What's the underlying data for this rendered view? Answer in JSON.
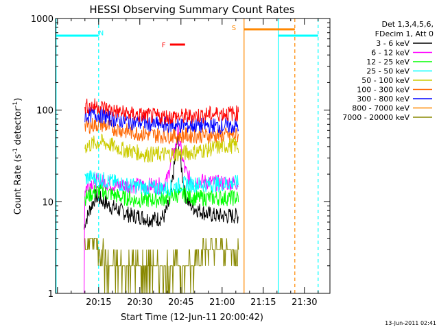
{
  "chart_data": {
    "type": "line",
    "title": "HESSI Observing Summary Count Rates",
    "xlabel": "Start Time (12-Jun-11 20:00:42)",
    "ylabel_prefix": "Count Rate (s",
    "ylabel_sup1": "-1",
    "ylabel_mid": " detector",
    "ylabel_sup2": "-1",
    "ylabel_suffix": ")",
    "yscale": "log",
    "ylim": [
      1,
      1000
    ],
    "xlim_minutes": [
      -0.7,
      99.3
    ],
    "x_ticks": [
      {
        "label": "20:15",
        "minutes": 15
      },
      {
        "label": "20:30",
        "minutes": 30
      },
      {
        "label": "20:45",
        "minutes": 45
      },
      {
        "label": "21:00",
        "minutes": 60
      },
      {
        "label": "21:15",
        "minutes": 75
      },
      {
        "label": "21:30",
        "minutes": 90
      }
    ],
    "y_ticks": [
      {
        "label": "1",
        "value": 1
      },
      {
        "label": "10",
        "value": 10
      },
      {
        "label": "100",
        "value": 100
      },
      {
        "label": "1000",
        "value": 1000
      }
    ],
    "legend": {
      "header": [
        "Det 1,3,4,5,6,",
        "FDecim 1, Att 0"
      ],
      "placement": "right"
    },
    "series": [
      {
        "name": "3 - 6 keV",
        "color": "#000000",
        "points": [
          [
            9.7,
            5
          ],
          [
            10,
            6
          ],
          [
            11,
            7
          ],
          [
            12,
            8.5
          ],
          [
            13,
            10
          ],
          [
            14,
            11.5
          ],
          [
            15,
            11
          ],
          [
            17,
            10
          ],
          [
            19,
            9
          ],
          [
            21,
            8.5
          ],
          [
            23,
            8
          ],
          [
            25,
            7.5
          ],
          [
            27,
            7
          ],
          [
            29,
            7
          ],
          [
            31,
            6.8
          ],
          [
            33,
            6.5
          ],
          [
            35,
            6.5
          ],
          [
            37,
            6.5
          ],
          [
            39,
            7
          ],
          [
            41,
            10
          ],
          [
            42,
            18
          ],
          [
            43,
            30
          ],
          [
            43.8,
            50
          ],
          [
            44.5,
            35
          ],
          [
            45.5,
            20
          ],
          [
            46.5,
            12
          ],
          [
            48,
            9.5
          ],
          [
            50,
            8.5
          ],
          [
            52,
            8
          ],
          [
            54,
            7.5
          ],
          [
            56,
            7.2
          ],
          [
            58,
            7
          ],
          [
            60,
            7
          ],
          [
            62,
            7
          ],
          [
            66,
            7
          ]
        ]
      },
      {
        "name": "6 - 12 keV",
        "color": "#ff00ff",
        "points": [
          [
            9.7,
            1
          ],
          [
            9.8,
            5
          ],
          [
            10,
            14
          ],
          [
            12,
            16
          ],
          [
            14,
            17
          ],
          [
            16,
            16.5
          ],
          [
            18,
            16
          ],
          [
            20,
            15.5
          ],
          [
            22,
            15
          ],
          [
            24,
            15
          ],
          [
            26,
            15
          ],
          [
            28,
            15
          ],
          [
            30,
            15
          ],
          [
            32,
            15
          ],
          [
            34,
            15
          ],
          [
            36,
            15
          ],
          [
            38,
            15
          ],
          [
            40,
            17
          ],
          [
            41,
            25
          ],
          [
            42,
            32
          ],
          [
            43,
            38
          ],
          [
            43.8,
            60
          ],
          [
            44.5,
            45
          ],
          [
            45.5,
            30
          ],
          [
            46.5,
            22
          ],
          [
            48,
            18
          ],
          [
            50,
            17
          ],
          [
            54,
            16.5
          ],
          [
            58,
            16
          ],
          [
            62,
            16
          ],
          [
            66,
            16
          ]
        ]
      },
      {
        "name": "12 - 25 keV",
        "color": "#00ff00",
        "points": [
          [
            10,
            11
          ],
          [
            12,
            12
          ],
          [
            14,
            13
          ],
          [
            16,
            13
          ],
          [
            18,
            12.5
          ],
          [
            20,
            12
          ],
          [
            22,
            11.5
          ],
          [
            24,
            11
          ],
          [
            26,
            11
          ],
          [
            28,
            10.5
          ],
          [
            30,
            10.5
          ],
          [
            32,
            10.5
          ],
          [
            34,
            10.5
          ],
          [
            36,
            10.5
          ],
          [
            38,
            10.8
          ],
          [
            40,
            11
          ],
          [
            42,
            11.5
          ],
          [
            44,
            12
          ],
          [
            46,
            12
          ],
          [
            48,
            11.5
          ],
          [
            50,
            11
          ],
          [
            52,
            11
          ],
          [
            54,
            11
          ],
          [
            56,
            11
          ],
          [
            58,
            11
          ],
          [
            60,
            11
          ],
          [
            62,
            11
          ],
          [
            66,
            11
          ]
        ]
      },
      {
        "name": "25 - 50 keV",
        "color": "#00ffff",
        "points": [
          [
            10,
            18
          ],
          [
            12,
            18.5
          ],
          [
            14,
            18
          ],
          [
            16,
            17.5
          ],
          [
            18,
            17
          ],
          [
            20,
            16.5
          ],
          [
            22,
            16
          ],
          [
            24,
            15.5
          ],
          [
            26,
            15
          ],
          [
            28,
            14.8
          ],
          [
            30,
            14.5
          ],
          [
            32,
            14.3
          ],
          [
            34,
            14
          ],
          [
            36,
            14
          ],
          [
            38,
            14
          ],
          [
            40,
            14
          ],
          [
            42,
            14.5
          ],
          [
            44,
            15
          ],
          [
            46,
            15.5
          ],
          [
            48,
            15.5
          ],
          [
            50,
            15.5
          ],
          [
            54,
            15.5
          ],
          [
            58,
            15.5
          ],
          [
            62,
            16
          ],
          [
            66,
            16
          ]
        ]
      },
      {
        "name": "50 - 100 keV",
        "color": "#cccc00",
        "points": [
          [
            10,
            40
          ],
          [
            12,
            42
          ],
          [
            14,
            44
          ],
          [
            16,
            45
          ],
          [
            18,
            43
          ],
          [
            20,
            41
          ],
          [
            22,
            39
          ],
          [
            24,
            37
          ],
          [
            26,
            36
          ],
          [
            28,
            35
          ],
          [
            30,
            34
          ],
          [
            32,
            33
          ],
          [
            34,
            33
          ],
          [
            36,
            33
          ],
          [
            38,
            33
          ],
          [
            40,
            33
          ],
          [
            42,
            33
          ],
          [
            44,
            33.5
          ],
          [
            46,
            34
          ],
          [
            48,
            34.5
          ],
          [
            50,
            35
          ],
          [
            52,
            36
          ],
          [
            54,
            37
          ],
          [
            56,
            38
          ],
          [
            58,
            39
          ],
          [
            60,
            40
          ],
          [
            62,
            41
          ],
          [
            66,
            41
          ]
        ]
      },
      {
        "name": "100 - 300 keV",
        "color": "#ff6600",
        "points": [
          [
            10,
            66
          ],
          [
            12,
            68
          ],
          [
            14,
            70
          ],
          [
            16,
            70
          ],
          [
            18,
            67
          ],
          [
            20,
            64
          ],
          [
            22,
            62
          ],
          [
            24,
            60
          ],
          [
            26,
            58
          ],
          [
            28,
            57
          ],
          [
            30,
            56
          ],
          [
            32,
            55
          ],
          [
            34,
            54
          ],
          [
            36,
            53
          ],
          [
            38,
            53
          ],
          [
            40,
            53
          ],
          [
            42,
            53
          ],
          [
            44,
            53
          ],
          [
            46,
            53
          ],
          [
            48,
            53
          ],
          [
            50,
            53
          ],
          [
            52,
            53
          ],
          [
            54,
            53
          ],
          [
            56,
            53
          ],
          [
            58,
            53
          ],
          [
            60,
            53
          ],
          [
            62,
            53
          ],
          [
            66,
            53
          ]
        ]
      },
      {
        "name": "300 - 800 keV",
        "color": "#0000ff",
        "points": [
          [
            10,
            87
          ],
          [
            12,
            89
          ],
          [
            14,
            90
          ],
          [
            16,
            88
          ],
          [
            18,
            84
          ],
          [
            20,
            80
          ],
          [
            22,
            78
          ],
          [
            24,
            76
          ],
          [
            26,
            75
          ],
          [
            28,
            74
          ],
          [
            30,
            73
          ],
          [
            32,
            72
          ],
          [
            34,
            71
          ],
          [
            36,
            70
          ],
          [
            38,
            70
          ],
          [
            40,
            69
          ],
          [
            42,
            69
          ],
          [
            44,
            68
          ],
          [
            46,
            68
          ],
          [
            48,
            68
          ],
          [
            50,
            68
          ],
          [
            52,
            68
          ],
          [
            54,
            68
          ],
          [
            56,
            68
          ],
          [
            58,
            67
          ],
          [
            60,
            67
          ],
          [
            62,
            67
          ],
          [
            66,
            67
          ]
        ]
      },
      {
        "name": "800 - 7000 keV",
        "color": "#ff8800",
        "points": []
      },
      {
        "name": "7000 - 20000 keV",
        "color": "#888800",
        "points": [
          [
            10,
            3
          ],
          [
            12,
            4
          ],
          [
            14,
            3.5
          ],
          [
            16,
            3
          ],
          [
            18,
            2.2
          ],
          [
            20,
            2
          ],
          [
            22,
            2
          ],
          [
            24,
            1.8
          ],
          [
            26,
            1.6
          ],
          [
            28,
            1.6
          ],
          [
            30,
            1.5
          ],
          [
            32,
            1.5
          ],
          [
            34,
            1.5
          ],
          [
            36,
            1.5
          ],
          [
            38,
            1.5
          ],
          [
            40,
            1.5
          ],
          [
            42,
            1.5
          ],
          [
            44,
            1.6
          ],
          [
            46,
            1.7
          ],
          [
            48,
            2
          ],
          [
            50,
            2.5
          ],
          [
            52,
            3
          ],
          [
            54,
            3
          ],
          [
            56,
            3
          ],
          [
            58,
            3
          ],
          [
            60,
            3
          ],
          [
            62,
            3
          ],
          [
            66,
            3
          ]
        ]
      },
      {
        "name": "",
        "color": "#ff0000",
        "points": [
          [
            10,
            110
          ],
          [
            12,
            110
          ],
          [
            14,
            111
          ],
          [
            16,
            108
          ],
          [
            18,
            103
          ],
          [
            20,
            99
          ],
          [
            22,
            96
          ],
          [
            24,
            93
          ],
          [
            26,
            91
          ],
          [
            28,
            89
          ],
          [
            30,
            88
          ],
          [
            32,
            87
          ],
          [
            34,
            86
          ],
          [
            36,
            85
          ],
          [
            38,
            85
          ],
          [
            40,
            85
          ],
          [
            42,
            85
          ],
          [
            44,
            85
          ],
          [
            46,
            85
          ],
          [
            48,
            86
          ],
          [
            50,
            87
          ],
          [
            52,
            88
          ],
          [
            54,
            89
          ],
          [
            56,
            90
          ],
          [
            58,
            91
          ],
          [
            60,
            92
          ],
          [
            62,
            92
          ],
          [
            66,
            92
          ]
        ]
      }
    ],
    "annotations": [
      {
        "label": "N",
        "color": "#00ffff",
        "x_minutes": 15,
        "y_value": 700
      },
      {
        "label": "S",
        "color": "#ff8800",
        "x_minutes": 63.5,
        "y_value": 800
      },
      {
        "label": "F",
        "color": "#ff0000",
        "x_minutes": 38,
        "y_value": 520
      }
    ],
    "status_bars": [
      {
        "kind": "night",
        "color": "#00ffff",
        "x_from": -0.7,
        "x_to": 15,
        "y_value": 650,
        "dashed_end": 15
      },
      {
        "kind": "night",
        "color": "#00ffff",
        "x_from": 80.5,
        "x_to": 95,
        "y_value": 650,
        "dashed_end": 95
      },
      {
        "kind": "saa",
        "color": "#ff8800",
        "x_from": 68,
        "x_to": 86.5,
        "y_value": 760,
        "dashed_end": 86.5
      },
      {
        "kind": "flare",
        "color": "#ff0000",
        "x_from": 41,
        "x_to": 46.5,
        "y_value": 520
      }
    ],
    "vertical_lines": [
      {
        "color": "#00ffff",
        "minutes": -0.5,
        "style": "solid"
      },
      {
        "color": "#00ffff",
        "minutes": 15,
        "style": "dashed"
      },
      {
        "color": "#ff8800",
        "minutes": 68,
        "style": "solid"
      },
      {
        "color": "#00ffff",
        "minutes": 80.5,
        "style": "solid"
      },
      {
        "color": "#ff8800",
        "minutes": 86.5,
        "style": "dashed"
      },
      {
        "color": "#00ffff",
        "minutes": 95,
        "style": "dashed"
      }
    ]
  },
  "timestamp": "13-Jun-2011 02:41"
}
